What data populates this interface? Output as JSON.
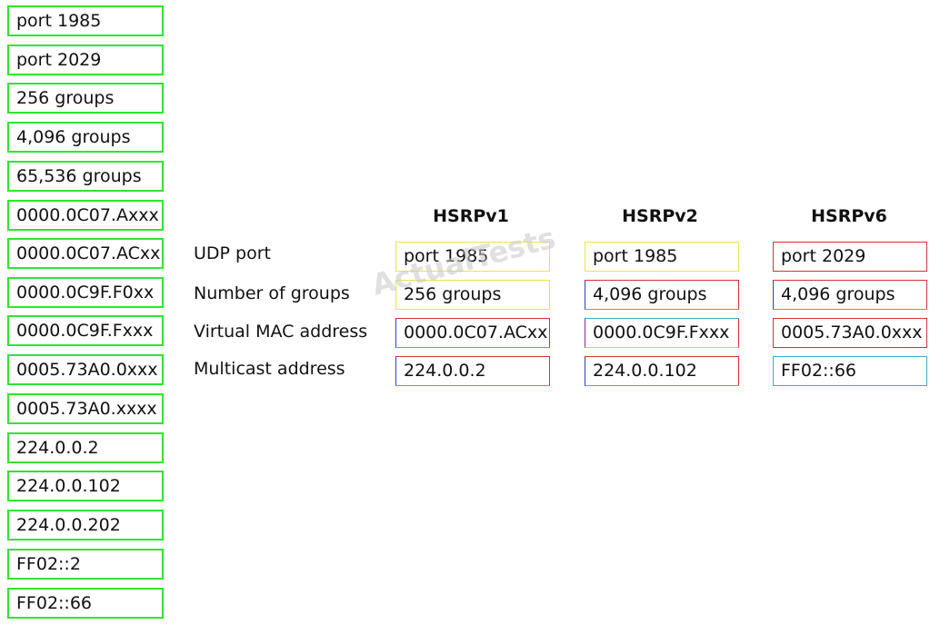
{
  "options": [
    "port 1985",
    "port 2029",
    "256 groups",
    "4,096 groups",
    "65,536 groups",
    "0000.0C07.Axxx",
    "0000.0C07.ACxx",
    "0000.0C9F.F0xx",
    "0000.0C9F.Fxxx",
    "0005.73A0.0xxx",
    "0005.73A0.xxxx",
    "224.0.0.2",
    "224.0.0.102",
    "224.0.0.202",
    "FF02::2",
    "FF02::66"
  ],
  "headers": [
    "HSRPv1",
    "HSRPv2",
    "HSRPv6"
  ],
  "row_labels": [
    "UDP port",
    "Number of groups",
    "Virtual MAC address",
    "Multicast address"
  ],
  "answers": {
    "v1": [
      "port 1985",
      "256 groups",
      "0000.0C07.ACxx",
      "224.0.0.2"
    ],
    "v2": [
      "port 1985",
      "4,096 groups",
      "0000.0C9F.Fxxx",
      "224.0.0.102"
    ],
    "v6": [
      "port 2029",
      "4,096 groups",
      "0005.73A0.0xxx",
      "FF02::66"
    ]
  },
  "watermark": "ActualTests",
  "colors": {
    "option_border": "#2ee62e",
    "cell_border_blue": "#3aaec8",
    "cell_border_red": "#d83232"
  }
}
